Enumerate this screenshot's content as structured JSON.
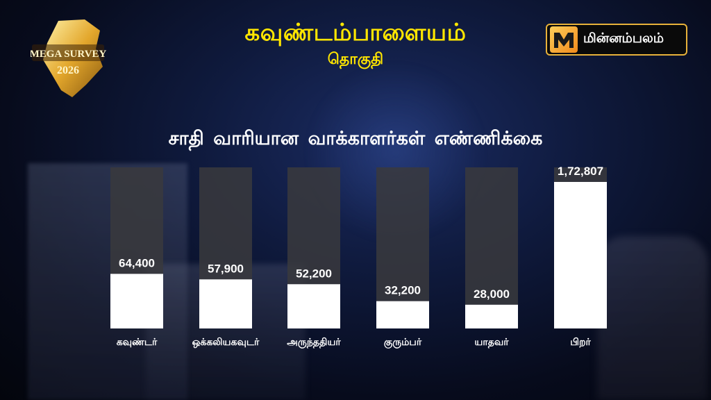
{
  "header": {
    "title": "கவுண்டம்பாளையம்",
    "subtitle": "தொகுதி"
  },
  "logo": {
    "line1": "MEGA SURVEY",
    "line2": "2026"
  },
  "brand": {
    "name": "மின்னம்பலம்"
  },
  "colors": {
    "title": "#ffe600",
    "bar_fill": "#ffffff",
    "bar_track": "#3a3a3d",
    "brand_border": "#e8b23a"
  },
  "chart_data": {
    "type": "bar",
    "title": "சாதி வாரியான வாக்காளர்கள்  எண்ணிக்கை",
    "categories": [
      "கவுண்டர்",
      "ஒக்கலியகவுடர்",
      "அருந்ததியர்",
      "குரும்பர்",
      "யாதவர்",
      "பிறர்"
    ],
    "values": [
      64400,
      57900,
      52200,
      32200,
      28000,
      172807
    ],
    "value_labels": [
      "64,400",
      "57,900",
      "52,200",
      "32,200",
      "28,000",
      "1,72,807"
    ],
    "ylim": [
      0,
      190000
    ],
    "grid": false,
    "legend": "none"
  }
}
